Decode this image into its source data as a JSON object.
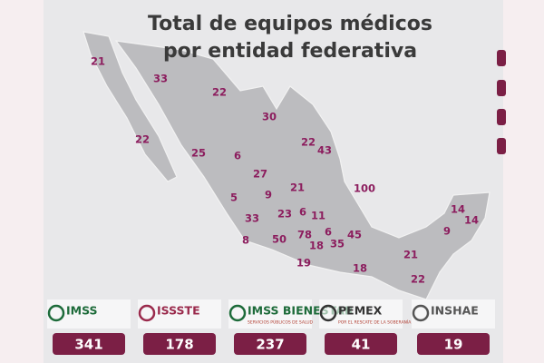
{
  "header": {
    "title": [
      "Total de equipos médicos",
      "por entidad federativa"
    ]
  },
  "map": {
    "values": [
      21,
      33,
      22,
      30,
      22,
      25,
      6,
      22,
      43,
      27,
      21,
      100,
      5,
      9,
      33,
      23,
      6,
      11,
      8,
      50,
      78,
      6,
      18,
      35,
      45,
      19,
      18,
      21,
      22,
      9,
      14,
      14
    ]
  },
  "institutions": [
    {
      "name": "IMSS",
      "total": 341
    },
    {
      "name": "ISSSTE",
      "total": 178
    },
    {
      "name": "IMSS BIENESTAR",
      "subtitle": "SERVICIOS PÚBLICOS DE SALUD",
      "total": 237
    },
    {
      "name": "PEMEX",
      "subtitle": "POR EL RESCATE DE LA SOBERANÍA",
      "total": 41
    },
    {
      "name": "INSHAE",
      "total": 19
    }
  ]
}
